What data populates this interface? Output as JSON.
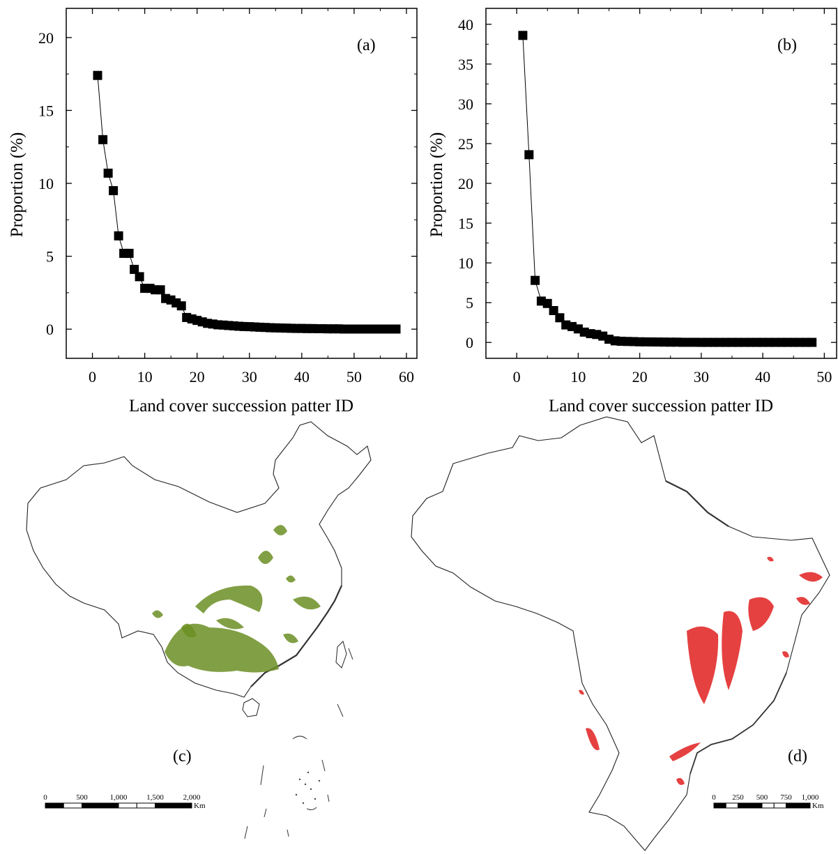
{
  "chart_data": [
    {
      "type": "line",
      "panel_label": "(a)",
      "xlabel": "Land cover succession patter ID",
      "ylabel": "Proportion (%)",
      "xlim": [
        -5,
        62
      ],
      "ylim": [
        -2,
        22
      ],
      "xticks": [
        0,
        10,
        20,
        30,
        40,
        50,
        60
      ],
      "yticks": [
        0,
        5,
        10,
        15,
        20
      ],
      "marker": "square",
      "grid": false,
      "series": [
        {
          "x": [
            1,
            2,
            3,
            4,
            5,
            6,
            7,
            8,
            9,
            10,
            11,
            12,
            13,
            14,
            15,
            16,
            17,
            18,
            19,
            20,
            21,
            22,
            23,
            24,
            25,
            26,
            27,
            28,
            29,
            30,
            31,
            32,
            33,
            34,
            35,
            36,
            37,
            38,
            39,
            40,
            41,
            42,
            43,
            44,
            45,
            46,
            47,
            48,
            49,
            50,
            51,
            52,
            53,
            54,
            55,
            56,
            57,
            58
          ],
          "y": [
            17.4,
            13.0,
            10.7,
            9.5,
            6.4,
            5.2,
            5.2,
            4.1,
            3.6,
            2.8,
            2.8,
            2.7,
            2.7,
            2.1,
            2.0,
            1.8,
            1.6,
            0.8,
            0.7,
            0.6,
            0.5,
            0.4,
            0.35,
            0.3,
            0.28,
            0.25,
            0.23,
            0.2,
            0.18,
            0.17,
            0.15,
            0.13,
            0.12,
            0.1,
            0.09,
            0.08,
            0.07,
            0.06,
            0.05,
            0.05,
            0.04,
            0.04,
            0.03,
            0.03,
            0.02,
            0.02,
            0.02,
            0.01,
            0.01,
            0.01,
            0.01,
            0.01,
            0.01,
            0.01,
            0.01,
            0.01,
            0.01,
            0.01
          ]
        }
      ]
    },
    {
      "type": "line",
      "panel_label": "(b)",
      "xlabel": "Land cover succession patter ID",
      "ylabel": "Proportion (%)",
      "xlim": [
        -5,
        52
      ],
      "ylim": [
        -2,
        42
      ],
      "xticks": [
        0,
        10,
        20,
        30,
        40,
        50
      ],
      "yticks": [
        0,
        5,
        10,
        15,
        20,
        25,
        30,
        35,
        40
      ],
      "marker": "square",
      "grid": false,
      "series": [
        {
          "x": [
            1,
            2,
            3,
            4,
            5,
            6,
            7,
            8,
            9,
            10,
            11,
            12,
            13,
            14,
            15,
            16,
            17,
            18,
            19,
            20,
            21,
            22,
            23,
            24,
            25,
            26,
            27,
            28,
            29,
            30,
            31,
            32,
            33,
            34,
            35,
            36,
            37,
            38,
            39,
            40,
            41,
            42,
            43,
            44,
            45,
            46,
            47,
            48
          ],
          "y": [
            38.6,
            23.6,
            7.8,
            5.2,
            4.9,
            4.0,
            3.1,
            2.2,
            2.0,
            1.7,
            1.3,
            1.1,
            1.0,
            0.8,
            0.4,
            0.2,
            0.15,
            0.12,
            0.1,
            0.08,
            0.07,
            0.06,
            0.05,
            0.04,
            0.03,
            0.03,
            0.02,
            0.02,
            0.02,
            0.01,
            0.01,
            0.01,
            0.01,
            0.01,
            0.01,
            0.01,
            0.01,
            0.01,
            0.01,
            0.01,
            0.01,
            0.01,
            0.01,
            0.01,
            0.01,
            0.01,
            0.01,
            0.01
          ]
        }
      ]
    }
  ],
  "maps": {
    "china": {
      "panel_label": "(c)",
      "scale_labels": [
        "0",
        "500",
        "1,000",
        "1,500",
        "2,000"
      ],
      "scale_unit": "Km",
      "highlight_color": "#6b8e23"
    },
    "brazil": {
      "panel_label": "(d)",
      "scale_labels": [
        "0",
        "250",
        "500",
        "750",
        "1,000"
      ],
      "scale_unit": "Km",
      "highlight_color": "#e02020"
    }
  }
}
